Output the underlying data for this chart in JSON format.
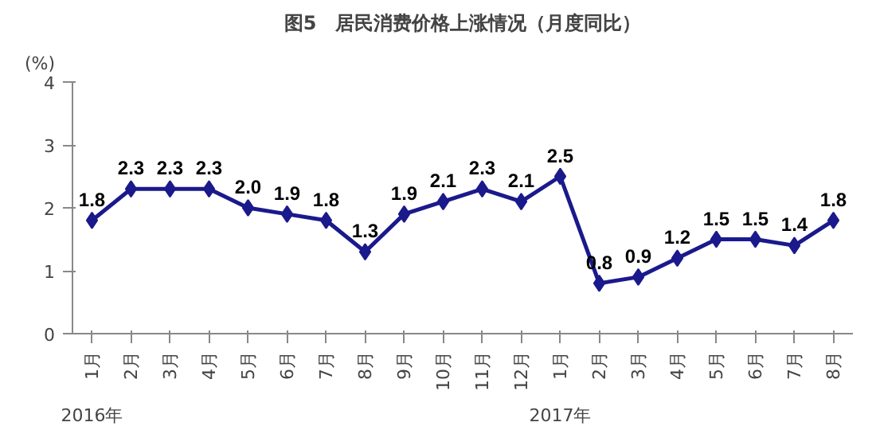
{
  "chart_data": {
    "type": "line",
    "title": "图5　居民消费价格上涨情况（月度同比）",
    "ylabel": "(%)",
    "categories": [
      "1月",
      "2月",
      "3月",
      "4月",
      "5月",
      "6月",
      "7月",
      "8月",
      "9月",
      "10月",
      "11月",
      "12月",
      "1月",
      "2月",
      "3月",
      "4月",
      "5月",
      "6月",
      "7月",
      "8月"
    ],
    "series": [
      {
        "color": "#1a1a8c",
        "values": [
          1.8,
          2.3,
          2.3,
          2.3,
          2.0,
          1.9,
          1.8,
          1.3,
          1.9,
          2.1,
          2.3,
          2.1,
          2.5,
          0.8,
          0.9,
          1.2,
          1.5,
          1.5,
          1.4,
          1.8
        ],
        "value_labels": [
          "1.8",
          "2.3",
          "2.3",
          "2.3",
          "2.0",
          "1.9",
          "1.8",
          "1.3",
          "1.9",
          "2.1",
          "2.3",
          "2.1",
          "2.5",
          "0.8",
          "0.9",
          "1.2",
          "1.5",
          "1.5",
          "1.4",
          "1.8"
        ]
      }
    ],
    "annotations": [
      "2016年",
      "2017年"
    ],
    "ylim": [
      0,
      4
    ],
    "yticks": [
      0,
      1,
      2,
      3,
      4
    ],
    "grid": false,
    "marker": "diamond",
    "line_style": "solid"
  }
}
